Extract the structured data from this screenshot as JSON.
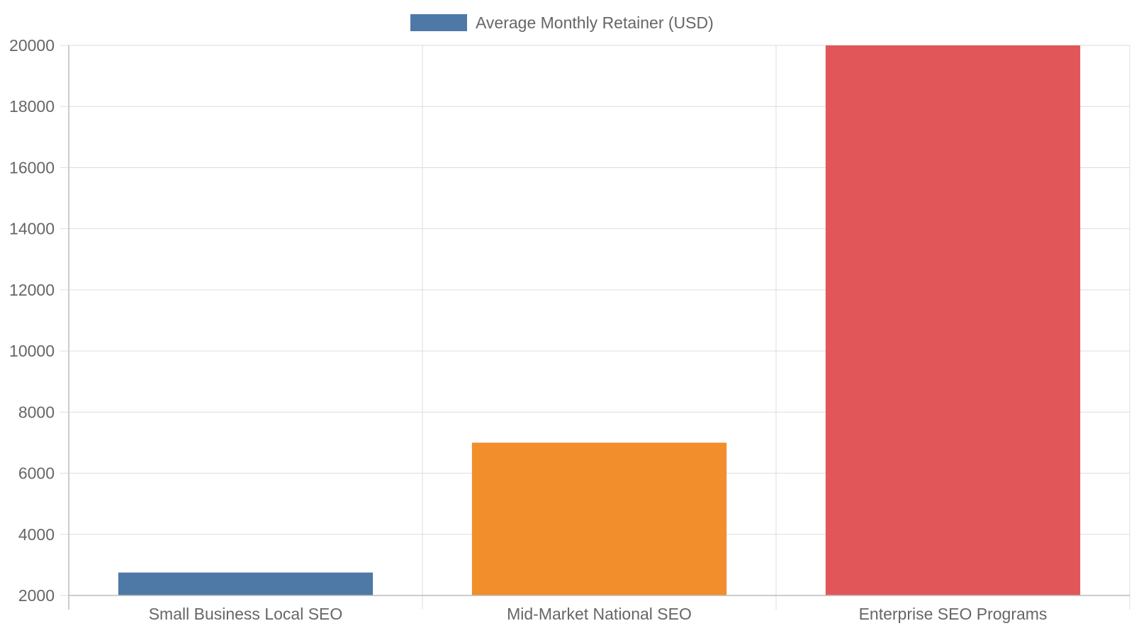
{
  "chart_data": {
    "type": "bar",
    "categories": [
      "Small Business Local SEO",
      "Mid-Market National SEO",
      "Enterprise SEO Programs"
    ],
    "series": [
      {
        "name": "Average Monthly Retainer (USD)",
        "values": [
          2750,
          7000,
          20000
        ],
        "colors": [
          "#4e79a7",
          "#f28e2b",
          "#e15759"
        ]
      }
    ],
    "legend": {
      "label": "Average Monthly Retainer (USD)",
      "color": "#4e79a7",
      "position": "top-center"
    },
    "ylim": [
      2000,
      20000
    ],
    "yticks": [
      "2000",
      "4000",
      "6000",
      "8000",
      "10000",
      "12000",
      "14000",
      "16000",
      "18000",
      "20000"
    ],
    "grid": true
  }
}
